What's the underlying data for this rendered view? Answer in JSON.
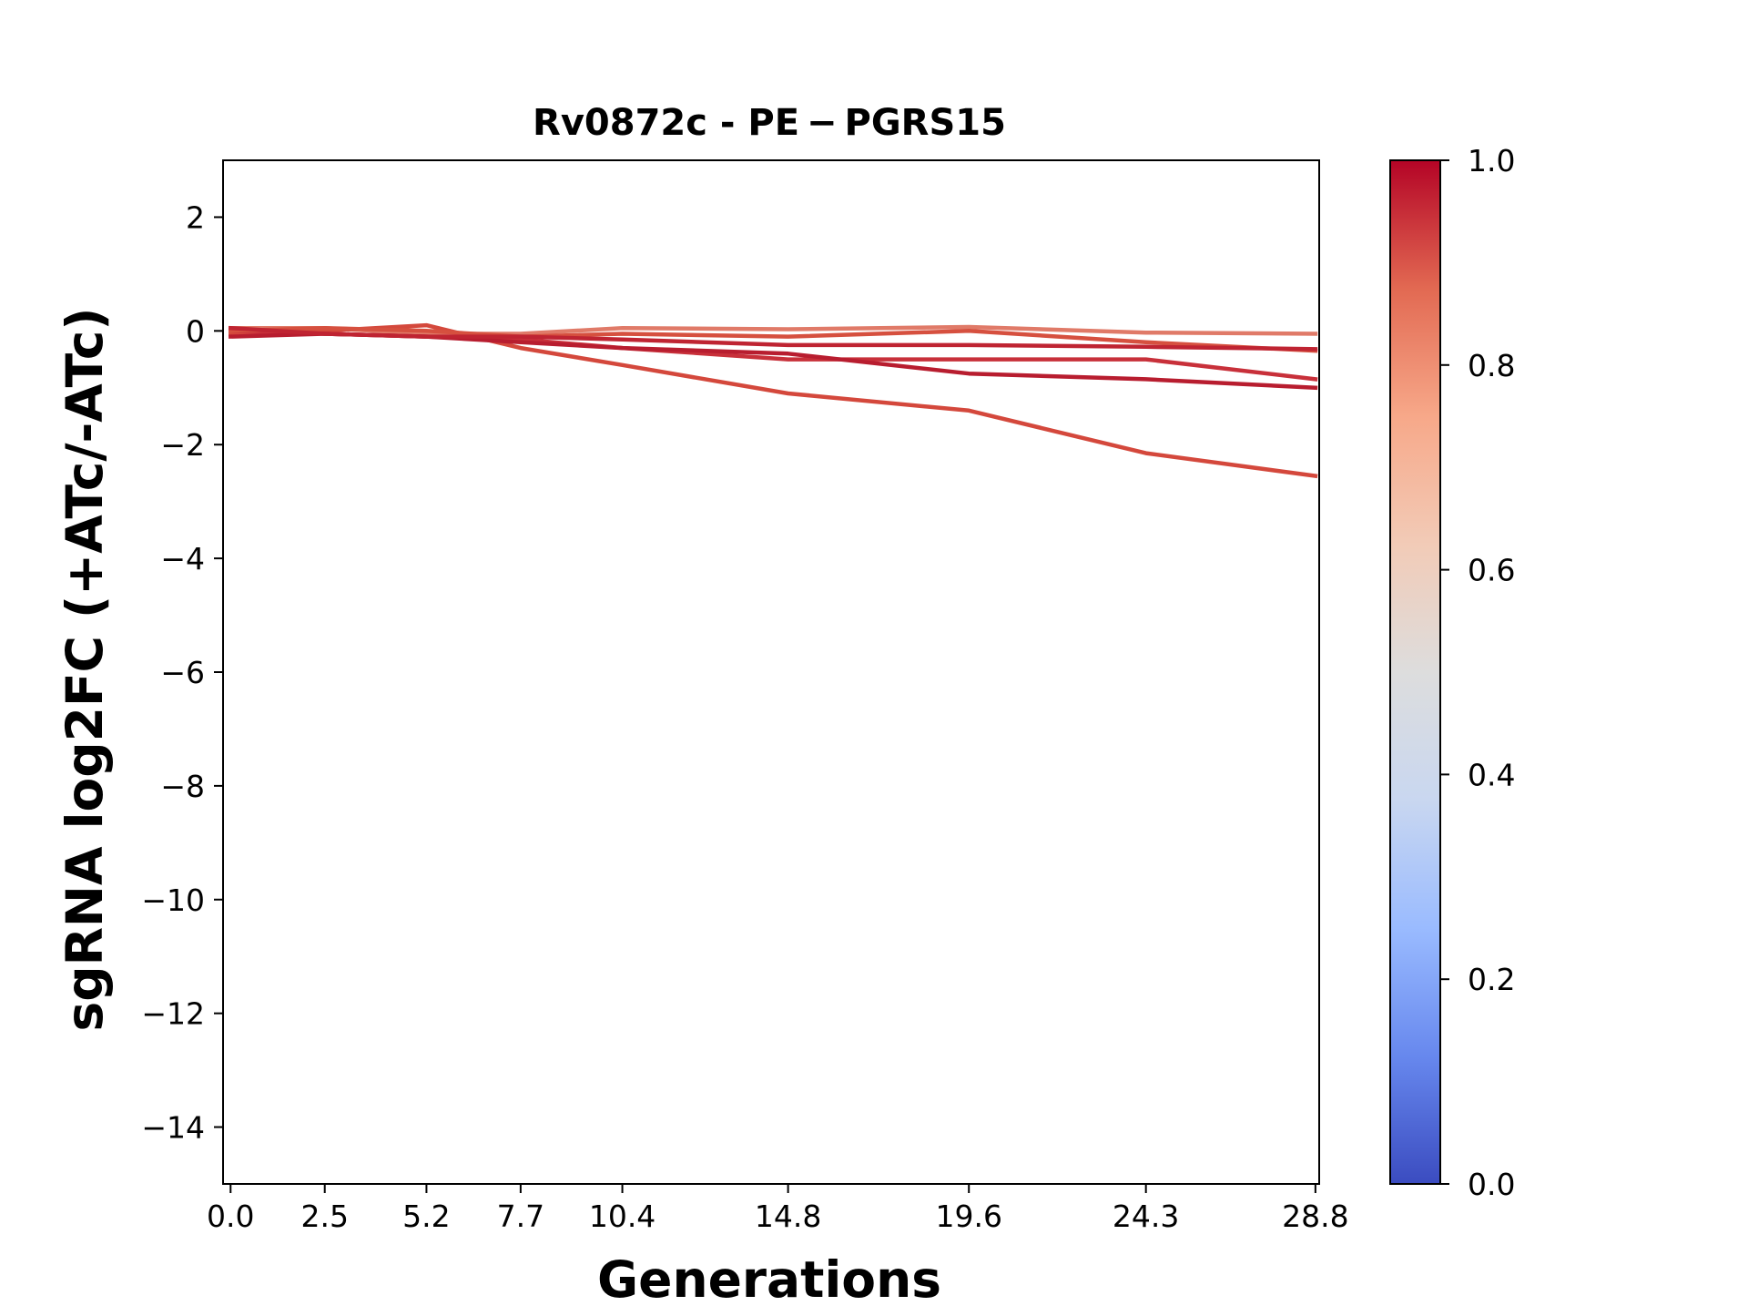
{
  "chart_data": {
    "type": "line",
    "title": "Rv0872c - PE − PGRS15",
    "xlabel": "Generations",
    "ylabel": "sgRNA log2FC (+ATc/-ATc)",
    "x": [
      0.0,
      2.5,
      5.2,
      7.7,
      10.4,
      14.8,
      19.6,
      24.3,
      28.8
    ],
    "x_tick_labels": [
      "0.0",
      "2.5",
      "5.2",
      "7.7",
      "10.4",
      "14.8",
      "19.6",
      "24.3",
      "28.8"
    ],
    "xlim": [
      -0.2,
      28.9
    ],
    "ylim": [
      -15,
      3
    ],
    "y_ticks": [
      2,
      0,
      -2,
      -4,
      -6,
      -8,
      -10,
      -12,
      -14
    ],
    "y_tick_labels": [
      "2",
      "0",
      "−2",
      "−4",
      "−6",
      "−8",
      "−10",
      "−12",
      "−14"
    ],
    "grid": false,
    "series": [
      {
        "color": "#e07a68",
        "values": [
          0.05,
          0.05,
          -0.05,
          -0.05,
          0.05,
          0.03,
          0.07,
          -0.03,
          -0.05
        ]
      },
      {
        "color": "#d4483c",
        "values": [
          -0.05,
          0.0,
          0.1,
          -0.3,
          -0.6,
          -1.1,
          -1.4,
          -2.15,
          -2.55
        ]
      },
      {
        "color": "#c8303a",
        "values": [
          0.0,
          -0.05,
          -0.1,
          -0.15,
          -0.3,
          -0.5,
          -0.5,
          -0.5,
          -0.85
        ]
      },
      {
        "color": "#d6503f",
        "values": [
          0.0,
          0.05,
          0.0,
          -0.1,
          -0.05,
          -0.1,
          0.0,
          -0.2,
          -0.35
        ]
      },
      {
        "color": "#b81d2f",
        "values": [
          -0.1,
          -0.05,
          -0.1,
          -0.2,
          -0.3,
          -0.4,
          -0.75,
          -0.85,
          -1.0
        ]
      },
      {
        "color": "#bf2432",
        "values": [
          0.05,
          -0.05,
          -0.1,
          -0.1,
          -0.15,
          -0.25,
          -0.25,
          -0.28,
          -0.32
        ]
      }
    ],
    "colorbar": {
      "range": [
        0.0,
        1.0
      ],
      "ticks": [
        0.0,
        0.2,
        0.4,
        0.6,
        0.8,
        1.0
      ],
      "tick_labels": [
        "0.0",
        "0.2",
        "0.4",
        "0.6",
        "0.8",
        "1.0"
      ],
      "colormap": "coolwarm",
      "stops": [
        "#3b4cc0",
        "#6788ee",
        "#9abbff",
        "#c9d7f0",
        "#dddddd",
        "#f2cbb7",
        "#f7a889",
        "#e26952",
        "#b40426"
      ]
    }
  }
}
